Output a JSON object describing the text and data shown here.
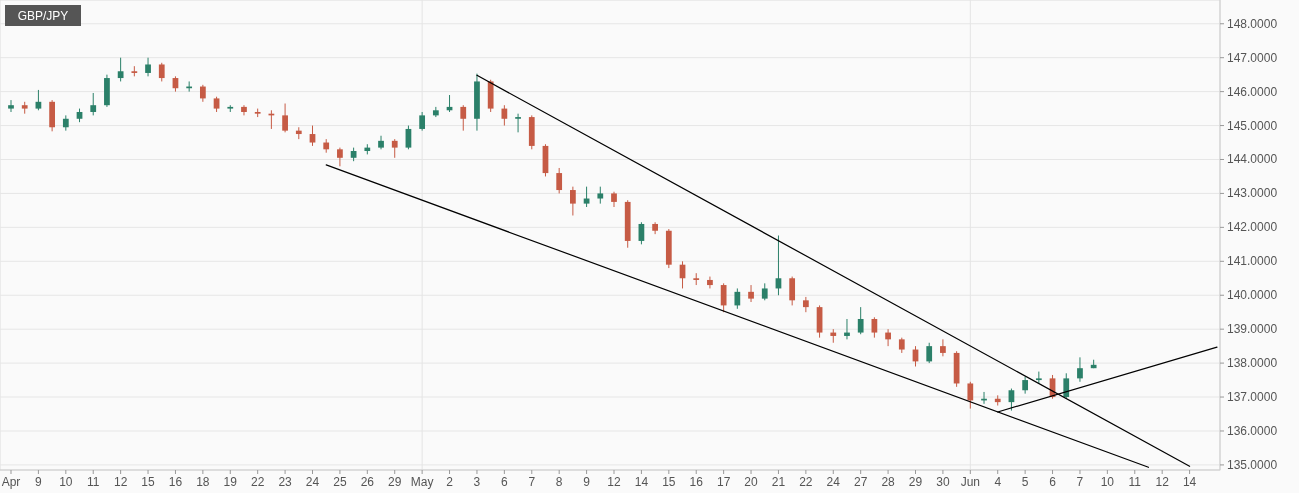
{
  "chart_data": {
    "type": "candlestick",
    "title": "GBP/JPY",
    "categories": [
      "Apr",
      null,
      "9",
      null,
      "10",
      null,
      "11",
      null,
      "12",
      null,
      "15",
      null,
      "16",
      null,
      "18",
      null,
      "19",
      null,
      "22",
      null,
      "23",
      null,
      "24",
      null,
      "25",
      null,
      "26",
      null,
      "29",
      null,
      "May",
      null,
      "2",
      null,
      "3",
      null,
      "6",
      null,
      "7",
      null,
      "8",
      null,
      "9",
      null,
      "12",
      null,
      "14",
      null,
      "15",
      null,
      "16",
      null,
      "17",
      null,
      "20",
      null,
      "21",
      null,
      "22",
      null,
      "24",
      null,
      "27",
      null,
      "28",
      null,
      "29",
      null,
      "30",
      null,
      "Jun",
      null,
      "4",
      null,
      "5",
      null,
      "6",
      null,
      "7",
      null,
      "10",
      null,
      "11",
      null,
      "12",
      null,
      "14",
      null,
      null
    ],
    "ohlc": [
      [
        145.5,
        145.75,
        145.4,
        145.6
      ],
      [
        145.6,
        145.7,
        145.35,
        145.5
      ],
      [
        145.5,
        146.05,
        145.45,
        145.7
      ],
      [
        145.7,
        145.75,
        144.83,
        144.95
      ],
      [
        144.95,
        145.3,
        144.85,
        145.2
      ],
      [
        145.2,
        145.5,
        145.1,
        145.4
      ],
      [
        145.4,
        145.96,
        145.3,
        145.6
      ],
      [
        145.6,
        146.5,
        145.55,
        146.4
      ],
      [
        146.4,
        147.0,
        146.3,
        146.6
      ],
      [
        146.6,
        146.75,
        146.45,
        146.55
      ],
      [
        146.55,
        147.0,
        146.45,
        146.8
      ],
      [
        146.8,
        146.85,
        146.3,
        146.4
      ],
      [
        146.4,
        146.45,
        146.0,
        146.1
      ],
      [
        146.1,
        146.3,
        146.0,
        146.15
      ],
      [
        146.15,
        146.2,
        145.7,
        145.8
      ],
      [
        145.8,
        145.85,
        145.4,
        145.5
      ],
      [
        145.5,
        145.6,
        145.4,
        145.55
      ],
      [
        145.55,
        145.6,
        145.3,
        145.4
      ],
      [
        145.4,
        145.5,
        145.25,
        145.35
      ],
      [
        145.35,
        145.45,
        144.9,
        145.3
      ],
      [
        145.3,
        145.65,
        144.8,
        144.85
      ],
      [
        144.85,
        144.95,
        144.6,
        144.75
      ],
      [
        144.75,
        145.0,
        144.4,
        144.5
      ],
      [
        144.5,
        144.6,
        144.2,
        144.3
      ],
      [
        144.3,
        144.35,
        143.8,
        144.05
      ],
      [
        144.05,
        144.35,
        143.95,
        144.25
      ],
      [
        144.25,
        144.45,
        144.15,
        144.35
      ],
      [
        144.35,
        144.7,
        144.3,
        144.55
      ],
      [
        144.55,
        144.6,
        144.05,
        144.35
      ],
      [
        144.35,
        145.0,
        144.3,
        144.9
      ],
      [
        144.9,
        145.4,
        144.85,
        145.3
      ],
      [
        145.3,
        145.55,
        145.25,
        145.45
      ],
      [
        145.45,
        145.9,
        145.4,
        145.55
      ],
      [
        145.55,
        145.6,
        144.85,
        145.2
      ],
      [
        145.2,
        146.53,
        144.85,
        146.3
      ],
      [
        146.3,
        146.35,
        145.4,
        145.5
      ],
      [
        145.5,
        145.6,
        145.0,
        145.2
      ],
      [
        145.2,
        145.35,
        144.8,
        145.25
      ],
      [
        145.25,
        145.3,
        144.3,
        144.4
      ],
      [
        144.4,
        144.45,
        143.5,
        143.6
      ],
      [
        143.6,
        143.75,
        143.0,
        143.1
      ],
      [
        143.1,
        143.2,
        142.35,
        142.7
      ],
      [
        142.7,
        143.2,
        142.6,
        142.85
      ],
      [
        142.85,
        143.2,
        142.7,
        143.0
      ],
      [
        143.0,
        143.05,
        142.6,
        142.75
      ],
      [
        142.75,
        142.8,
        141.4,
        141.6
      ],
      [
        141.6,
        142.15,
        141.5,
        142.1
      ],
      [
        142.1,
        142.15,
        141.8,
        141.9
      ],
      [
        141.9,
        141.95,
        140.8,
        140.9
      ],
      [
        140.9,
        141.0,
        140.2,
        140.5
      ],
      [
        140.5,
        140.65,
        140.3,
        140.45
      ],
      [
        140.45,
        140.55,
        140.2,
        140.3
      ],
      [
        140.3,
        140.35,
        139.5,
        139.7
      ],
      [
        139.7,
        140.2,
        139.6,
        140.1
      ],
      [
        140.1,
        140.3,
        139.8,
        139.9
      ],
      [
        139.9,
        140.35,
        139.85,
        140.2
      ],
      [
        140.2,
        141.76,
        140.0,
        140.5
      ],
      [
        140.5,
        140.55,
        139.7,
        139.85
      ],
      [
        139.85,
        139.95,
        139.5,
        139.65
      ],
      [
        139.65,
        139.7,
        138.75,
        138.9
      ],
      [
        138.9,
        139.0,
        138.6,
        138.8
      ],
      [
        138.8,
        139.3,
        138.7,
        138.9
      ],
      [
        138.9,
        139.65,
        138.85,
        139.3
      ],
      [
        139.3,
        139.35,
        138.75,
        138.9
      ],
      [
        138.9,
        139.0,
        138.5,
        138.7
      ],
      [
        138.7,
        138.75,
        138.3,
        138.4
      ],
      [
        138.4,
        138.5,
        137.9,
        138.05
      ],
      [
        138.05,
        138.6,
        138.0,
        138.5
      ],
      [
        138.5,
        138.7,
        138.2,
        138.3
      ],
      [
        138.3,
        138.35,
        137.3,
        137.4
      ],
      [
        137.4,
        137.45,
        136.66,
        136.9
      ],
      [
        136.9,
        137.15,
        136.8,
        136.95
      ],
      [
        136.95,
        137.05,
        136.75,
        136.85
      ],
      [
        136.85,
        137.25,
        136.6,
        137.2
      ],
      [
        137.2,
        137.6,
        137.1,
        137.5
      ],
      [
        137.5,
        137.75,
        137.4,
        137.55
      ],
      [
        137.55,
        137.65,
        136.95,
        137.0
      ],
      [
        137.0,
        137.7,
        136.95,
        137.55
      ],
      [
        137.55,
        138.17,
        137.45,
        137.85
      ],
      [
        137.85,
        138.1,
        137.85,
        137.95
      ],
      null,
      null,
      null,
      null,
      null,
      null,
      null,
      null,
      null
    ],
    "colors": [
      "#2b8069",
      "#c65b45",
      "#2b8069",
      "#c65b45",
      "#2b8069",
      "#2b8069",
      "#2b8069",
      "#2b8069",
      "#2b8069",
      "#c65b45",
      "#2b8069",
      "#c65b45",
      "#c65b45",
      "#2b8069",
      "#c65b45",
      "#c65b45",
      "#2b8069",
      "#c65b45",
      "#c65b45",
      "#c65b45",
      "#c65b45",
      "#c65b45",
      "#c65b45",
      "#c65b45",
      "#c65b45",
      "#2b8069",
      "#2b8069",
      "#2b8069",
      "#c65b45",
      "#2b8069",
      "#2b8069",
      "#2b8069",
      "#2b8069",
      "#c65b45",
      "#2b8069",
      "#c65b45",
      "#c65b45",
      "#2b8069",
      "#c65b45",
      "#c65b45",
      "#c65b45",
      "#c65b45",
      "#2b8069",
      "#2b8069",
      "#c65b45",
      "#c65b45",
      "#2b8069",
      "#c65b45",
      "#c65b45",
      "#c65b45",
      "#c65b45",
      "#c65b45",
      "#c65b45",
      "#2b8069",
      "#c65b45",
      "#2b8069",
      "#2b8069",
      "#c65b45",
      "#c65b45",
      "#c65b45",
      "#c65b45",
      "#2b8069",
      "#2b8069",
      "#c65b45",
      "#c65b45",
      "#c65b45",
      "#c65b45",
      "#2b8069",
      "#c65b45",
      "#c65b45",
      "#c65b45",
      "#2b8069",
      "#c65b45",
      "#2b8069",
      "#2b8069",
      "#2b8069",
      "#c65b45",
      "#2b8069",
      "#2b8069",
      "#2b8069",
      null,
      null,
      null,
      null,
      null,
      null,
      null,
      null,
      null
    ],
    "series": [
      {
        "type": "line",
        "color": "#000000",
        "values": [
          null,
          null,
          null,
          null,
          null,
          null,
          null,
          null,
          null,
          null,
          null,
          null,
          null,
          null,
          null,
          null,
          null,
          null,
          null,
          null,
          null,
          null,
          null,
          143.84,
          null,
          null,
          null,
          null,
          null,
          null,
          null,
          null,
          null,
          null,
          null,
          null,
          null,
          null,
          null,
          null,
          null,
          null,
          null,
          null,
          null,
          null,
          null,
          null,
          null,
          null,
          null,
          null,
          null,
          null,
          null,
          null,
          null,
          null,
          null,
          null,
          null,
          null,
          null,
          null,
          null,
          null,
          null,
          null,
          null,
          null,
          null,
          null,
          null,
          null,
          null,
          null,
          null,
          null,
          null,
          null,
          null,
          null,
          null,
          134.93,
          null,
          null,
          null,
          null,
          null
        ]
      },
      {
        "type": "line",
        "color": "#000000",
        "values": [
          null,
          null,
          null,
          null,
          null,
          null,
          null,
          null,
          null,
          null,
          null,
          null,
          null,
          null,
          null,
          null,
          null,
          null,
          null,
          null,
          null,
          null,
          null,
          null,
          null,
          null,
          null,
          null,
          null,
          null,
          null,
          null,
          null,
          null,
          146.48,
          null,
          null,
          null,
          null,
          null,
          null,
          null,
          null,
          null,
          null,
          null,
          null,
          null,
          null,
          null,
          null,
          null,
          null,
          null,
          null,
          null,
          null,
          null,
          null,
          null,
          null,
          null,
          null,
          null,
          null,
          null,
          null,
          null,
          null,
          null,
          null,
          null,
          null,
          null,
          null,
          null,
          null,
          null,
          null,
          null,
          null,
          null,
          null,
          null,
          null,
          null,
          134.96,
          null,
          null
        ]
      },
      {
        "type": "line",
        "color": "#000000",
        "values": [
          null,
          null,
          null,
          null,
          null,
          null,
          null,
          null,
          null,
          null,
          null,
          null,
          null,
          null,
          null,
          null,
          null,
          null,
          null,
          null,
          null,
          null,
          null,
          null,
          null,
          null,
          null,
          null,
          null,
          null,
          null,
          null,
          null,
          null,
          null,
          null,
          null,
          null,
          null,
          null,
          null,
          null,
          null,
          null,
          null,
          null,
          null,
          null,
          null,
          null,
          null,
          null,
          null,
          null,
          null,
          null,
          null,
          null,
          null,
          null,
          null,
          null,
          null,
          null,
          null,
          null,
          null,
          null,
          null,
          null,
          null,
          null,
          136.56,
          null,
          null,
          null,
          null,
          null,
          null,
          null,
          null,
          null,
          null,
          null,
          null,
          null,
          null,
          null,
          138.47
        ]
      }
    ],
    "ylim": [
      134.85,
      148.7
    ],
    "yticks": [
      {
        "value": 135,
        "label": "135.0000"
      },
      {
        "value": 136,
        "label": "136.0000"
      },
      {
        "value": 137,
        "label": "137.0000"
      },
      {
        "value": 138,
        "label": "138.0000"
      },
      {
        "value": 139,
        "label": "139.0000"
      },
      {
        "value": 140,
        "label": "140.0000"
      },
      {
        "value": 141,
        "label": "141.0000"
      },
      {
        "value": 142,
        "label": "142.0000"
      },
      {
        "value": 143,
        "label": "143.0000"
      },
      {
        "value": 144,
        "label": "144.0000"
      },
      {
        "value": 145,
        "label": "145.0000"
      },
      {
        "value": 146,
        "label": "146.0000"
      },
      {
        "value": 147,
        "label": "147.0000"
      },
      {
        "value": 148,
        "label": "148.0000"
      }
    ],
    "grid": "y",
    "ref_lines": [
      {
        "axis": "x",
        "value": "May",
        "color": "#e4e4e4"
      },
      {
        "axis": "x",
        "value": "Jun",
        "color": "#e4e4e4"
      }
    ]
  }
}
